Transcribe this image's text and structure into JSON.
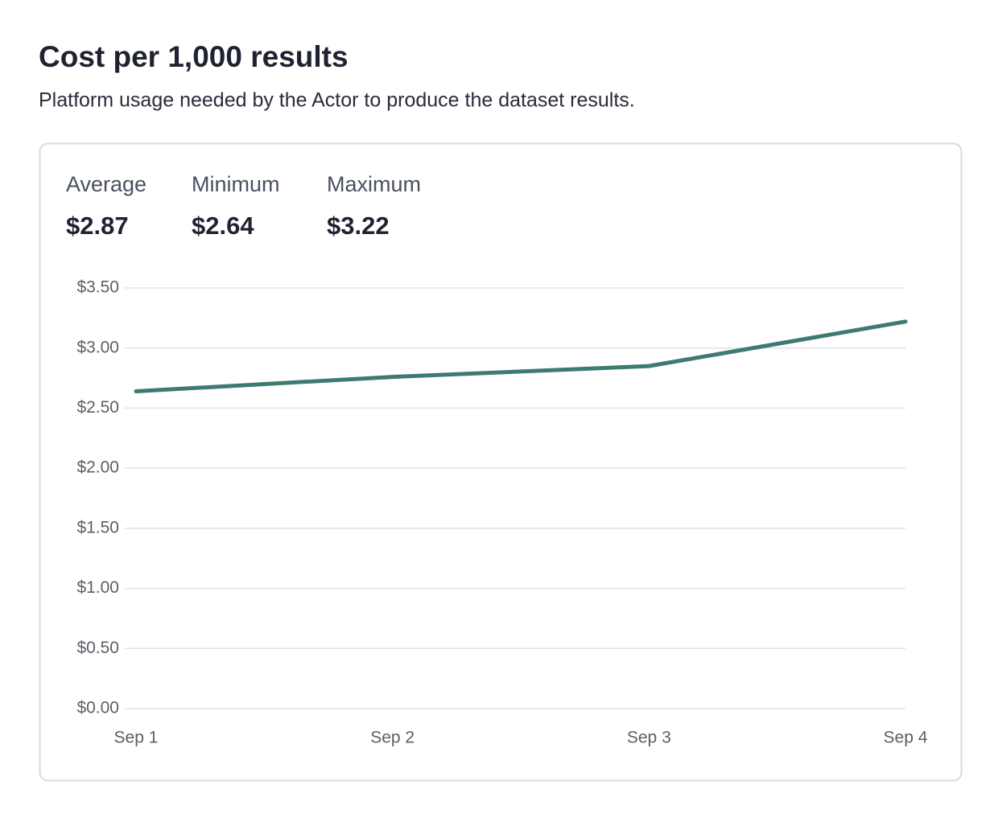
{
  "header": {
    "title": "Cost per 1,000 results",
    "subtitle": "Platform usage needed by the Actor to produce the dataset results."
  },
  "stats": [
    {
      "label": "Average",
      "value": "$2.87"
    },
    {
      "label": "Minimum",
      "value": "$2.64"
    },
    {
      "label": "Maximum",
      "value": "$3.22"
    }
  ],
  "chart_data": {
    "type": "line",
    "categories": [
      "Sep 1",
      "Sep 2",
      "Sep 3",
      "Sep 4"
    ],
    "values": [
      2.64,
      2.76,
      2.85,
      3.22
    ],
    "color": "#3d7a72",
    "ylim": [
      0,
      3.5
    ],
    "yticks": [
      {
        "value": 0,
        "label": "$0.00"
      },
      {
        "value": 0.5,
        "label": "$0.50"
      },
      {
        "value": 1,
        "label": "$1.00"
      },
      {
        "value": 1.5,
        "label": "$1.50"
      },
      {
        "value": 2,
        "label": "$2.00"
      },
      {
        "value": 2.5,
        "label": "$2.50"
      },
      {
        "value": 3,
        "label": "$3.00"
      },
      {
        "value": 3.5,
        "label": "$3.50"
      }
    ],
    "grid": true
  }
}
